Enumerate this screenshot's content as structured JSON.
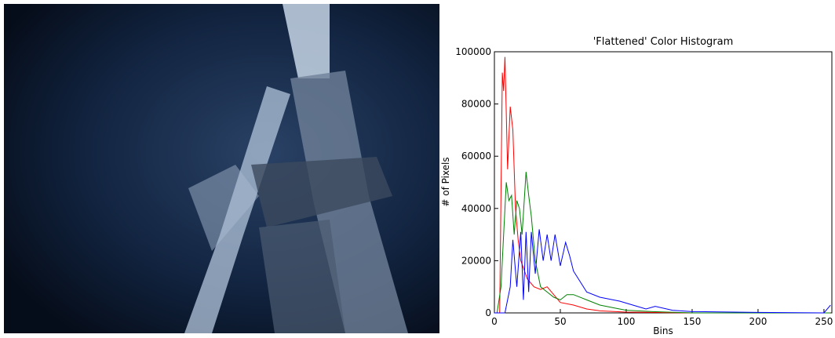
{
  "chart_data": {
    "type": "line",
    "title": "'Flattened' Color Histogram",
    "x_label": "Bins",
    "y_label": "# of Pixels",
    "xlim": [
      0,
      256
    ],
    "ylim": [
      0,
      100000
    ],
    "xticks": [
      0,
      50,
      100,
      150,
      200,
      250
    ],
    "yticks": [
      0,
      20000,
      40000,
      60000,
      80000,
      100000
    ],
    "series": [
      {
        "color": "#ff0000",
        "x": [
          0,
          4,
          6,
          7,
          8,
          10,
          12,
          14,
          16,
          18,
          20,
          25,
          30,
          35,
          40,
          45,
          50,
          60,
          70,
          80,
          100,
          150,
          200,
          255
        ],
        "values": [
          0,
          0,
          92000,
          85000,
          98000,
          55000,
          79000,
          70000,
          40000,
          28000,
          20000,
          13000,
          10000,
          9000,
          10000,
          7000,
          4000,
          3000,
          1500,
          800,
          300,
          0,
          0,
          0
        ]
      },
      {
        "color": "#008000",
        "x": [
          0,
          2,
          5,
          9,
          11,
          13,
          15,
          17,
          19,
          21,
          24,
          26,
          28,
          31,
          35,
          40,
          45,
          50,
          55,
          60,
          70,
          80,
          90,
          100,
          120,
          150,
          200,
          255
        ],
        "values": [
          0,
          0,
          10000,
          50000,
          43000,
          45000,
          30000,
          43000,
          40000,
          30000,
          54000,
          45000,
          37000,
          20000,
          10000,
          8000,
          6000,
          5000,
          7000,
          7000,
          5000,
          3000,
          2000,
          1000,
          500,
          0,
          0,
          0
        ]
      },
      {
        "color": "#0000ff",
        "x": [
          0,
          8,
          12,
          14,
          17,
          20,
          22,
          24,
          26,
          28,
          31,
          34,
          37,
          40,
          43,
          46,
          50,
          54,
          57,
          60,
          65,
          70,
          80,
          95,
          105,
          115,
          122,
          135,
          150,
          200,
          250,
          255
        ],
        "values": [
          0,
          0,
          10000,
          28000,
          10000,
          31000,
          5000,
          31000,
          8000,
          31000,
          15000,
          32000,
          20000,
          30000,
          20000,
          30000,
          18000,
          27000,
          22000,
          16000,
          12000,
          8000,
          6000,
          4500,
          3000,
          1500,
          2500,
          1000,
          500,
          200,
          0,
          3000
        ]
      }
    ]
  }
}
